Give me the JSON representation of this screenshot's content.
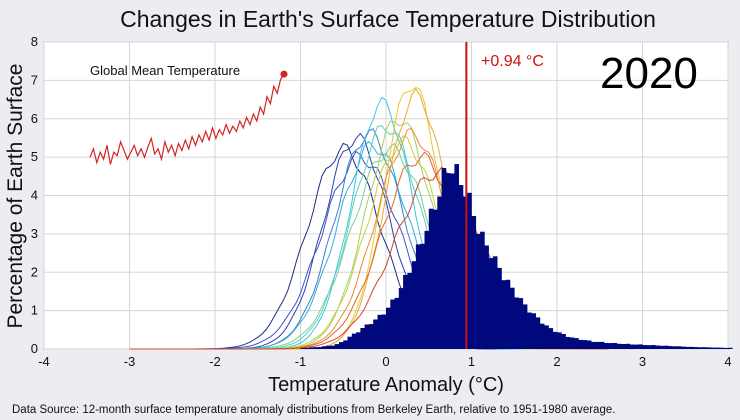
{
  "chart_data": {
    "type": "area",
    "title": "Changes in Earth's Surface Temperature Distribution",
    "xlabel": "Temperature Anomaly (°C)",
    "ylabel": "Percentage of Earth Surface",
    "xlim": [
      -4,
      4
    ],
    "ylim": [
      0,
      8
    ],
    "xticks": [
      "-4",
      "-3",
      "-2",
      "-1",
      "0",
      "1",
      "2",
      "3",
      "4"
    ],
    "yticks": [
      "0",
      "1",
      "2",
      "3",
      "4",
      "5",
      "6",
      "7",
      "8"
    ],
    "grid": true,
    "year_label": "2020",
    "mean_line": {
      "x": 0.94,
      "label": "+0.94 °C",
      "color": "#d01010"
    },
    "current_distribution": {
      "color": "#00087e",
      "x": [
        -1.0,
        -0.8,
        -0.6,
        -0.5,
        -0.4,
        -0.3,
        -0.2,
        -0.1,
        0.0,
        0.1,
        0.2,
        0.3,
        0.4,
        0.5,
        0.6,
        0.65,
        0.7,
        0.75,
        0.8,
        0.85,
        0.9,
        0.95,
        1.0,
        1.05,
        1.1,
        1.2,
        1.3,
        1.4,
        1.5,
        1.6,
        1.7,
        1.8,
        1.9,
        2.0,
        2.1,
        2.2,
        2.4,
        2.6,
        2.8,
        3.0,
        3.2,
        3.4,
        3.6,
        3.8,
        4.0
      ],
      "values": [
        0.02,
        0.05,
        0.1,
        0.2,
        0.35,
        0.5,
        0.65,
        0.8,
        1.0,
        1.3,
        1.7,
        2.2,
        2.7,
        3.3,
        3.9,
        4.3,
        4.6,
        4.8,
        4.7,
        4.4,
        4.3,
        4.0,
        3.7,
        3.3,
        3.0,
        2.6,
        2.2,
        1.8,
        1.5,
        1.2,
        0.95,
        0.75,
        0.55,
        0.45,
        0.35,
        0.28,
        0.2,
        0.16,
        0.13,
        0.11,
        0.09,
        0.07,
        0.05,
        0.04,
        0.03
      ]
    },
    "historical_series": [
      {
        "color": "#1f2a8a",
        "peak_x": -0.5,
        "peak_y": 5.2,
        "width": 0.42
      },
      {
        "color": "#2b3fb0",
        "peak_x": -0.35,
        "peak_y": 5.5,
        "width": 0.38
      },
      {
        "color": "#3a55c8",
        "peak_x": -0.3,
        "peak_y": 5.0,
        "width": 0.45
      },
      {
        "color": "#3a7fd0",
        "peak_x": -0.2,
        "peak_y": 5.6,
        "width": 0.4
      },
      {
        "color": "#3aa8d8",
        "peak_x": -0.15,
        "peak_y": 5.3,
        "width": 0.42
      },
      {
        "color": "#3ac8e0",
        "peak_x": -0.05,
        "peak_y": 6.4,
        "width": 0.35
      },
      {
        "color": "#5ad0c0",
        "peak_x": 0.0,
        "peak_y": 5.8,
        "width": 0.4
      },
      {
        "color": "#7ad090",
        "peak_x": 0.05,
        "peak_y": 5.2,
        "width": 0.45
      },
      {
        "color": "#a8d060",
        "peak_x": 0.15,
        "peak_y": 6.0,
        "width": 0.38
      },
      {
        "color": "#c8d040",
        "peak_x": 0.2,
        "peak_y": 5.4,
        "width": 0.42
      },
      {
        "color": "#e8c830",
        "peak_x": 0.3,
        "peak_y": 6.9,
        "width": 0.33
      },
      {
        "color": "#f0a830",
        "peak_x": 0.35,
        "peak_y": 6.6,
        "width": 0.35
      },
      {
        "color": "#f08830",
        "peak_x": 0.3,
        "peak_y": 5.6,
        "width": 0.42
      },
      {
        "color": "#e06830",
        "peak_x": 0.4,
        "peak_y": 5.0,
        "width": 0.45
      },
      {
        "color": "#d04a30",
        "peak_x": 0.6,
        "peak_y": 4.6,
        "width": 0.5
      }
    ],
    "inset": {
      "label": "Global Mean Temperature",
      "color": "#d42424",
      "values": [
        4.85,
        5.1,
        4.7,
        5.0,
        4.8,
        5.2,
        4.65,
        5.0,
        4.9,
        5.3,
        5.05,
        4.8,
        5.0,
        5.2,
        4.9,
        5.1,
        4.85,
        5.15,
        5.4,
        4.95,
        5.1,
        4.8,
        5.3,
        5.0,
        5.2,
        4.9,
        5.25,
        5.05,
        5.35,
        5.1,
        5.45,
        5.2,
        5.5,
        5.3,
        5.6,
        5.35,
        5.7,
        5.4,
        5.65,
        5.5,
        5.8,
        5.55,
        5.75,
        5.6,
        5.9,
        5.7,
        6.0,
        5.8,
        6.1,
        5.9,
        6.3,
        6.1,
        6.6,
        6.4,
        6.9,
        6.7,
        7.1,
        7.25
      ],
      "ylim": [
        4.2,
        7.6
      ]
    }
  },
  "source_note": "Data Source: 12-month surface temperature anomaly distributions from Berkeley Earth, relative to 1951-1980 average."
}
